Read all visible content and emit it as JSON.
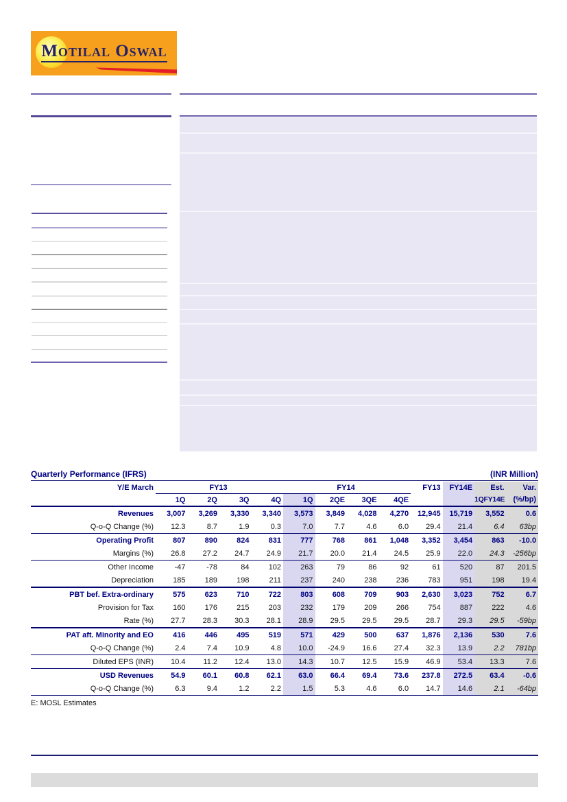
{
  "logo": {
    "text": "Motilal Oswal",
    "bg_color": "#f6a01d",
    "text_color": "#232168",
    "swoosh_color": "#e31e26",
    "sun_color": "#fdf263"
  },
  "colors": {
    "navy_text": "#000082",
    "lavender_box": "#e9e7f4",
    "lavender_column": "#d9d8f0",
    "gray_column": "#d9d9d9",
    "purple_rule": "#6c61aa",
    "footer_bar": "#dcdcdc"
  },
  "table": {
    "title": "Quarterly Performance (IFRS)",
    "unit": "(INR Million)",
    "footnote": "E: MOSL Estimates",
    "header": {
      "ye_label": "Y/E March",
      "groups": [
        {
          "label": "FY13",
          "span": 4,
          "underline": true,
          "hl": ""
        },
        {
          "label": "FY14",
          "span": 4,
          "underline": true,
          "hl": ""
        },
        {
          "label": "FY13",
          "span": 1,
          "underline": false,
          "hl": ""
        },
        {
          "label": "FY14E",
          "span": 1,
          "underline": false,
          "hl": "lav"
        },
        {
          "label": "Est.",
          "span": 1,
          "underline": false,
          "hl": "gray"
        },
        {
          "label": "Var.",
          "span": 1,
          "underline": false,
          "hl": "gray"
        }
      ],
      "subcols": [
        "1Q",
        "2Q",
        "3Q",
        "4Q",
        "1Q",
        "2QE",
        "3QE",
        "4QE",
        "",
        "",
        "1QFY14E",
        "(%/bp)"
      ]
    },
    "rows": [
      {
        "label": "Revenues",
        "bold": true,
        "indent": false,
        "rule": "none",
        "italic_cols": [],
        "values": [
          "3,007",
          "3,269",
          "3,330",
          "3,340",
          "3,573",
          "3,849",
          "4,028",
          "4,270",
          "12,945",
          "15,719",
          "3,552",
          "0.6"
        ]
      },
      {
        "label": "Q-o-Q Change (%)",
        "bold": false,
        "indent": true,
        "rule": "thin",
        "italic_cols": [
          10,
          11
        ],
        "values": [
          "12.3",
          "8.7",
          "1.9",
          "0.3",
          "7.0",
          "7.7",
          "4.6",
          "6.0",
          "29.4",
          "21.4",
          "6.4",
          "63bp"
        ]
      },
      {
        "label": "Operating Profit",
        "bold": true,
        "indent": false,
        "rule": "none",
        "italic_cols": [],
        "values": [
          "807",
          "890",
          "824",
          "831",
          "777",
          "768",
          "861",
          "1,048",
          "3,352",
          "3,454",
          "863",
          "-10.0"
        ]
      },
      {
        "label": "Margins (%)",
        "bold": false,
        "indent": true,
        "rule": "thin",
        "italic_cols": [
          10,
          11
        ],
        "values": [
          "26.8",
          "27.2",
          "24.7",
          "24.9",
          "21.7",
          "20.0",
          "21.4",
          "24.5",
          "25.9",
          "22.0",
          "24.3",
          "-256bp"
        ]
      },
      {
        "label": "Other Income",
        "bold": false,
        "indent": false,
        "rule": "none",
        "italic_cols": [],
        "values": [
          "-47",
          "-78",
          "84",
          "102",
          "263",
          "79",
          "86",
          "92",
          "61",
          "520",
          "87",
          "201.5"
        ]
      },
      {
        "label": "Depreciation",
        "bold": false,
        "indent": false,
        "rule": "thick",
        "italic_cols": [],
        "values": [
          "185",
          "189",
          "198",
          "211",
          "237",
          "240",
          "238",
          "236",
          "783",
          "951",
          "198",
          "19.4"
        ]
      },
      {
        "label": "PBT bef. Extra-ordinary",
        "bold": true,
        "indent": false,
        "rule": "none",
        "italic_cols": [],
        "values": [
          "575",
          "623",
          "710",
          "722",
          "803",
          "608",
          "709",
          "903",
          "2,630",
          "3,023",
          "752",
          "6.7"
        ]
      },
      {
        "label": "Provision for Tax",
        "bold": false,
        "indent": false,
        "rule": "none",
        "italic_cols": [],
        "values": [
          "160",
          "176",
          "215",
          "203",
          "232",
          "179",
          "209",
          "266",
          "754",
          "887",
          "222",
          "4.6"
        ]
      },
      {
        "label": "Rate (%)",
        "bold": false,
        "indent": true,
        "rule": "thick",
        "italic_cols": [
          10,
          11
        ],
        "values": [
          "27.7",
          "28.3",
          "30.3",
          "28.1",
          "28.9",
          "29.5",
          "29.5",
          "29.5",
          "28.7",
          "29.3",
          "29.5",
          "-59bp"
        ]
      },
      {
        "label": "PAT aft. Minority and EO",
        "bold": true,
        "indent": false,
        "rule": "none",
        "italic_cols": [],
        "values": [
          "416",
          "446",
          "495",
          "519",
          "571",
          "429",
          "500",
          "637",
          "1,876",
          "2,136",
          "530",
          "7.6"
        ]
      },
      {
        "label": "Q-o-Q Change (%)",
        "bold": false,
        "indent": true,
        "rule": "thin",
        "italic_cols": [
          10,
          11
        ],
        "values": [
          "2.4",
          "7.4",
          "10.9",
          "4.8",
          "10.0",
          "-24.9",
          "16.6",
          "27.4",
          "32.3",
          "13.9",
          "2.2",
          "781bp"
        ]
      },
      {
        "label": "Diluted EPS (INR)",
        "bold": false,
        "indent": false,
        "rule": "thin",
        "italic_cols": [],
        "values": [
          "10.4",
          "11.2",
          "12.4",
          "13.0",
          "14.3",
          "10.7",
          "12.5",
          "15.9",
          "46.9",
          "53.4",
          "13.3",
          "7.6"
        ]
      },
      {
        "label": "USD Revenues",
        "bold": true,
        "indent": false,
        "rule": "none",
        "italic_cols": [],
        "values": [
          "54.9",
          "60.1",
          "60.8",
          "62.1",
          "63.0",
          "66.4",
          "69.4",
          "73.6",
          "237.8",
          "272.5",
          "63.4",
          "-0.6"
        ]
      },
      {
        "label": "Q-o-Q Change (%)",
        "bold": false,
        "indent": true,
        "rule": "thin",
        "italic_cols": [
          10,
          11
        ],
        "values": [
          "6.3",
          "9.4",
          "1.2",
          "2.2",
          "1.5",
          "5.3",
          "4.6",
          "6.0",
          "14.7",
          "14.6",
          "2.1",
          "-64bp"
        ]
      }
    ]
  }
}
